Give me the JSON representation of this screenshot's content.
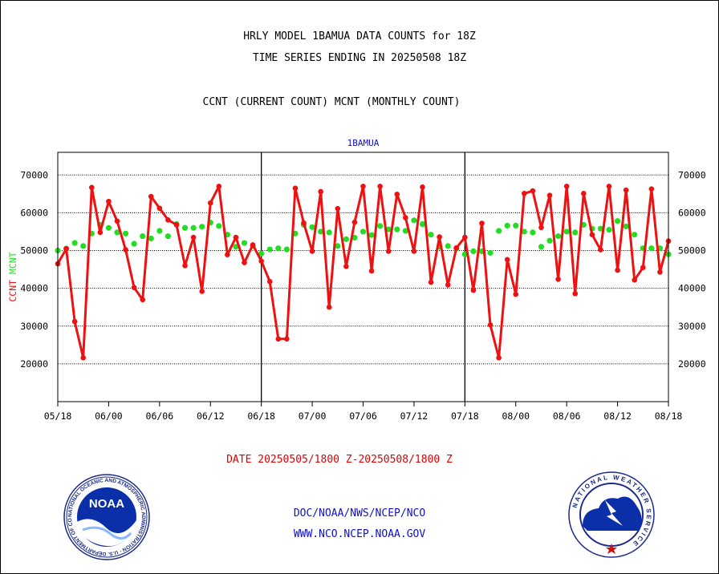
{
  "header": {
    "line1": "HRLY MODEL 1BAMUA DATA COUNTS for 18Z",
    "line2": "TIME SERIES ENDING IN 20250508 18Z",
    "line3": "CCNT (CURRENT COUNT) MCNT (MONTHLY COUNT)"
  },
  "footer": {
    "date_range": "DATE 20250505/1800 Z-20250508/1800 Z",
    "org_path": "DOC/NOAA/NWS/NCEP/NCO",
    "website": "WWW.NCO.NCEP.NOAA.GOV"
  },
  "logos": {
    "noaa_text": "NOAA",
    "noaa_ring": "NATIONAL OCEANIC AND ATMOSPHERIC ADMINISTRATION · U.S. DEPARTMENT OF COMMERCE",
    "nws_ring": "NATIONAL WEATHER SERVICE"
  },
  "colors": {
    "ccnt": "#ee1111",
    "mcnt": "#22dd22",
    "title": "#1010c8",
    "grid": "#000000"
  },
  "chart_data": {
    "type": "line",
    "title": "1BAMUA",
    "ylabel_left": [
      "CCNT",
      "MCNT"
    ],
    "ylim": [
      10000,
      76000
    ],
    "yticks": [
      20000,
      30000,
      40000,
      50000,
      60000,
      70000
    ],
    "xlim": [
      0,
      72
    ],
    "xticks": [
      0,
      6,
      12,
      18,
      24,
      30,
      36,
      42,
      48,
      54,
      60,
      66,
      72
    ],
    "xtick_labels": [
      "05/18",
      "06/00",
      "06/06",
      "06/12",
      "06/18",
      "07/00",
      "07/06",
      "07/12",
      "07/18",
      "08/00",
      "08/06",
      "08/12",
      "08/18"
    ],
    "day_boundaries": [
      24,
      48
    ],
    "grid": true,
    "series": [
      {
        "name": "CCNT",
        "color": "#ee1111",
        "x": [
          0,
          1,
          2,
          3,
          4,
          5,
          6,
          7,
          8,
          9,
          10,
          11,
          12,
          13,
          14,
          15,
          16,
          17,
          18,
          19,
          20,
          21,
          22,
          23,
          24,
          25,
          26,
          27,
          28,
          29,
          30,
          31,
          32,
          33,
          34,
          35,
          36,
          37,
          38,
          39,
          40,
          41,
          42,
          43,
          44,
          45,
          46,
          47,
          48,
          49,
          50,
          51,
          52,
          53,
          54,
          55,
          56,
          57,
          58,
          59,
          60,
          61,
          62,
          63,
          64,
          65,
          66,
          67,
          68,
          69,
          70,
          71,
          72
        ],
        "values": [
          46500,
          50500,
          31200,
          21600,
          66700,
          54800,
          63000,
          57800,
          50200,
          40200,
          37000,
          64300,
          61200,
          58100,
          56800,
          46000,
          53500,
          39200,
          62600,
          67000,
          48900,
          53500,
          46800,
          51500,
          47200,
          41800,
          26600,
          26600,
          66500,
          57300,
          49800,
          65600,
          35000,
          61100,
          45800,
          57500,
          67000,
          44600,
          67000,
          49800,
          64900,
          58700,
          49800,
          66800,
          41600,
          53600,
          40900,
          50700,
          53500,
          39500,
          57200,
          30300,
          21600,
          47600,
          38400,
          65100,
          65800,
          56100,
          64600,
          42400,
          67000,
          38600,
          65100,
          54200,
          50200,
          67000,
          44800,
          66000,
          42200,
          45500,
          66300,
          44300,
          52500
        ]
      },
      {
        "name": "MCNT",
        "color": "#22dd22",
        "x": [
          0,
          1,
          2,
          3,
          4,
          5,
          6,
          7,
          8,
          9,
          10,
          11,
          12,
          13,
          14,
          15,
          16,
          17,
          18,
          19,
          20,
          21,
          22,
          23,
          24,
          25,
          26,
          27,
          28,
          29,
          30,
          31,
          32,
          33,
          34,
          35,
          36,
          37,
          38,
          39,
          40,
          41,
          42,
          43,
          44,
          45,
          46,
          47,
          48,
          49,
          50,
          51,
          52,
          53,
          54,
          55,
          56,
          57,
          58,
          59,
          60,
          61,
          62,
          63,
          64,
          65,
          66,
          67,
          68,
          69,
          70,
          71,
          72
        ],
        "values": [
          50000,
          50500,
          52000,
          51200,
          54500,
          56800,
          56000,
          54800,
          54500,
          51800,
          53800,
          53200,
          55200,
          53800,
          57000,
          56000,
          56000,
          56300,
          57400,
          56500,
          54200,
          51000,
          52000,
          51200,
          49200,
          50300,
          50600,
          50300,
          54500,
          56800,
          56200,
          55000,
          54800,
          51200,
          53000,
          53400,
          55000,
          54100,
          56500,
          55600,
          55600,
          55200,
          58000,
          57000,
          54200,
          51000,
          51200,
          50500,
          49000,
          49800,
          49800,
          49400,
          55200,
          56600,
          56600,
          55000,
          54800,
          51000,
          52600,
          53800,
          55000,
          54800,
          56800,
          55800,
          55800,
          55500,
          57800,
          56400,
          54200,
          50600,
          50600,
          50600,
          49000
        ]
      }
    ]
  }
}
